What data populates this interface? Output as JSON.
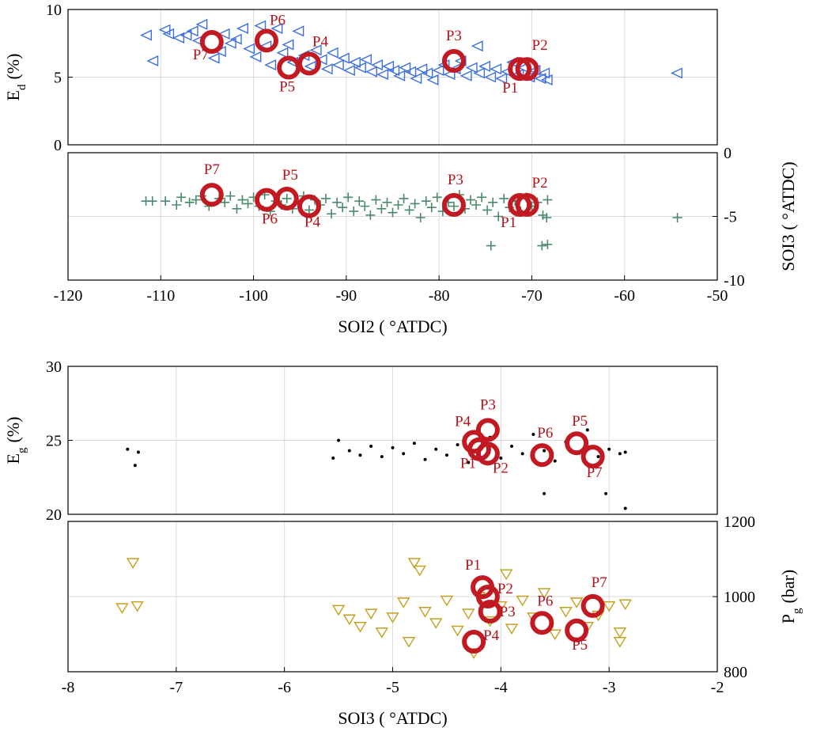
{
  "chart_data": [
    {
      "panel": "top-upper",
      "type": "scatter",
      "ylabel": "E",
      "ylabel_sub": "d",
      "ylabel_unit": "(%)",
      "xlim": [
        -120,
        -50
      ],
      "ylim": [
        0,
        10
      ],
      "yticks": [
        "0",
        "5",
        "10"
      ],
      "grid": true,
      "series": [
        {
          "marker": "triangle-left",
          "color": "#3d6fe0",
          "points": [
            [
              -111.5,
              8.1
            ],
            [
              -110.8,
              6.2
            ],
            [
              -109.5,
              8.5
            ],
            [
              -109.1,
              8.2
            ],
            [
              -108,
              7.9
            ],
            [
              -107.2,
              8.1
            ],
            [
              -106.5,
              8.4
            ],
            [
              -105.5,
              8.9
            ],
            [
              -105.9,
              7.7
            ],
            [
              -104.2,
              6.4
            ],
            [
              -103.5,
              6.9
            ],
            [
              -103.1,
              8.2
            ],
            [
              -102.4,
              7.5
            ],
            [
              -101.8,
              7.8
            ],
            [
              -101.1,
              8.6
            ],
            [
              -100.4,
              7.1
            ],
            [
              -99.7,
              6.5
            ],
            [
              -99.2,
              8.8
            ],
            [
              -98.6,
              7.3
            ],
            [
              -98.1,
              5.9
            ],
            [
              -97.4,
              8.6
            ],
            [
              -96.8,
              6.8
            ],
            [
              -96.2,
              7.4
            ],
            [
              -95.7,
              6.1
            ],
            [
              -95.1,
              8.4
            ],
            [
              -94.5,
              6.6
            ],
            [
              -93.8,
              5.8
            ],
            [
              -93.2,
              7.0
            ],
            [
              -92.6,
              6.3
            ],
            [
              -92.0,
              5.6
            ],
            [
              -91.4,
              6.8
            ],
            [
              -90.8,
              5.9
            ],
            [
              -90.2,
              6.4
            ],
            [
              -89.6,
              5.5
            ],
            [
              -89.0,
              6.1
            ],
            [
              -88.4,
              5.7
            ],
            [
              -87.8,
              6.3
            ],
            [
              -87.2,
              5.4
            ],
            [
              -86.6,
              5.9
            ],
            [
              -86.0,
              5.2
            ],
            [
              -85.4,
              5.8
            ],
            [
              -84.8,
              5.5
            ],
            [
              -84.2,
              5.1
            ],
            [
              -83.6,
              5.7
            ],
            [
              -83.0,
              5.4
            ],
            [
              -82.4,
              4.9
            ],
            [
              -81.8,
              5.6
            ],
            [
              -81.2,
              5.3
            ],
            [
              -80.6,
              4.8
            ],
            [
              -80.0,
              5.5
            ],
            [
              -79.4,
              5.9
            ],
            [
              -78.8,
              5.2
            ],
            [
              -78.2,
              5.6
            ],
            [
              -77.6,
              6.2
            ],
            [
              -77.0,
              5.1
            ],
            [
              -76.4,
              5.7
            ],
            [
              -75.8,
              7.3
            ],
            [
              -75.6,
              5.3
            ],
            [
              -75.0,
              5.8
            ],
            [
              -74.4,
              5.0
            ],
            [
              -73.8,
              5.6
            ],
            [
              -73.2,
              4.9
            ],
            [
              -72.6,
              5.4
            ],
            [
              -72.0,
              6.1
            ],
            [
              -71.4,
              5.2
            ],
            [
              -70.8,
              5.7
            ],
            [
              -70.2,
              5.0
            ],
            [
              -69.6,
              5.5
            ],
            [
              -69.0,
              4.9
            ],
            [
              -68.6,
              5.3
            ],
            [
              -68.3,
              4.8
            ],
            [
              -54.3,
              5.3
            ]
          ]
        }
      ],
      "highlights": [
        {
          "label": "P7",
          "x": -104.5,
          "y": 7.6
        },
        {
          "label": "P6",
          "x": -98.6,
          "y": 7.7
        },
        {
          "label": "P5",
          "x": -96.2,
          "y": 5.7
        },
        {
          "label": "P4",
          "x": -94.0,
          "y": 6.0
        },
        {
          "label": "P3",
          "x": -78.4,
          "y": 6.2
        },
        {
          "label": "P1",
          "x": -71.3,
          "y": 5.6
        },
        {
          "label": "P2",
          "x": -70.5,
          "y": 5.6
        }
      ]
    },
    {
      "panel": "top-lower",
      "type": "scatter",
      "ylabel": "SOI3 ( °ATDC)",
      "xlabel": "SOI2 ( °ATDC)",
      "xlim": [
        -120,
        -50
      ],
      "ylim": [
        -10,
        0
      ],
      "xticks": [
        "-120",
        "-110",
        "-100",
        "-90",
        "-80",
        "-70",
        "-60",
        "-50"
      ],
      "yticks": [
        "-10",
        "-5",
        "0"
      ],
      "grid": true,
      "series": [
        {
          "marker": "plus",
          "color": "#4a8a6a",
          "points": [
            [
              -111.6,
              -3.8
            ],
            [
              -110.9,
              -3.8
            ],
            [
              -109.5,
              -3.8
            ],
            [
              -108.3,
              -4.1
            ],
            [
              -107.8,
              -3.5
            ],
            [
              -106.9,
              -3.9
            ],
            [
              -106.2,
              -3.7
            ],
            [
              -105.6,
              -3.4
            ],
            [
              -104.8,
              -4.2
            ],
            [
              -103.7,
              -3.6
            ],
            [
              -103.1,
              -3.9
            ],
            [
              -102.5,
              -3.4
            ],
            [
              -101.8,
              -4.4
            ],
            [
              -101.2,
              -3.7
            ],
            [
              -100.6,
              -4.0
            ],
            [
              -100.0,
              -3.5
            ],
            [
              -99.4,
              -4.2
            ],
            [
              -98.8,
              -3.3
            ],
            [
              -98.2,
              -4.6
            ],
            [
              -97.6,
              -3.8
            ],
            [
              -97.0,
              -4.1
            ],
            [
              -96.4,
              -3.6
            ],
            [
              -95.8,
              -4.4
            ],
            [
              -95.2,
              -3.9
            ],
            [
              -94.6,
              -3.4
            ],
            [
              -94.0,
              -4.5
            ],
            [
              -93.4,
              -3.7
            ],
            [
              -92.8,
              -4.1
            ],
            [
              -92.2,
              -3.6
            ],
            [
              -91.6,
              -4.8
            ],
            [
              -91.0,
              -3.9
            ],
            [
              -90.4,
              -4.3
            ],
            [
              -89.8,
              -3.5
            ],
            [
              -89.2,
              -4.6
            ],
            [
              -88.6,
              -3.8
            ],
            [
              -88.0,
              -4.2
            ],
            [
              -87.4,
              -4.9
            ],
            [
              -86.8,
              -3.7
            ],
            [
              -86.2,
              -4.4
            ],
            [
              -85.6,
              -3.9
            ],
            [
              -85.0,
              -4.7
            ],
            [
              -84.4,
              -4.1
            ],
            [
              -83.8,
              -3.6
            ],
            [
              -83.2,
              -4.5
            ],
            [
              -82.6,
              -4.0
            ],
            [
              -82.0,
              -5.1
            ],
            [
              -81.4,
              -3.8
            ],
            [
              -80.8,
              -4.3
            ],
            [
              -80.2,
              -3.5
            ],
            [
              -79.6,
              -4.6
            ],
            [
              -79.0,
              -3.9
            ],
            [
              -78.4,
              -4.2
            ],
            [
              -77.8,
              -3.3
            ],
            [
              -77.2,
              -4.4
            ],
            [
              -76.6,
              -3.7
            ],
            [
              -76.0,
              -4.1
            ],
            [
              -75.4,
              -3.5
            ],
            [
              -74.8,
              -4.5
            ],
            [
              -74.2,
              -3.9
            ],
            [
              -73.6,
              -5.0
            ],
            [
              -73.0,
              -3.6
            ],
            [
              -72.4,
              -4.3
            ],
            [
              -71.8,
              -3.8
            ],
            [
              -71.2,
              -4.6
            ],
            [
              -70.6,
              -3.5
            ],
            [
              -70.0,
              -4.2
            ],
            [
              -69.4,
              -3.9
            ],
            [
              -68.8,
              -4.9
            ],
            [
              -68.3,
              -3.7
            ],
            [
              -68.4,
              -5.1
            ],
            [
              -74.4,
              -7.3
            ],
            [
              -68.9,
              -7.3
            ],
            [
              -68.3,
              -7.2
            ],
            [
              -54.3,
              -5.1
            ]
          ]
        }
      ],
      "highlights": [
        {
          "label": "P7",
          "x": -104.5,
          "y": -3.3
        },
        {
          "label": "P6",
          "x": -98.6,
          "y": -3.7
        },
        {
          "label": "P5",
          "x": -96.4,
          "y": -3.6
        },
        {
          "label": "P4",
          "x": -94.0,
          "y": -4.2
        },
        {
          "label": "P3",
          "x": -78.4,
          "y": -4.1
        },
        {
          "label": "P1",
          "x": -71.3,
          "y": -4.1
        },
        {
          "label": "P2",
          "x": -70.5,
          "y": -4.1
        }
      ]
    },
    {
      "panel": "bottom-upper",
      "type": "scatter",
      "ylabel": "E",
      "ylabel_sub": "g",
      "ylabel_unit": "(%)",
      "xlim": [
        -8,
        -2
      ],
      "ylim": [
        20,
        30
      ],
      "yticks": [
        "20",
        "25",
        "30"
      ],
      "grid": true,
      "series": [
        {
          "marker": "dot",
          "color": "#000000",
          "points": [
            [
              -7.45,
              24.4
            ],
            [
              -7.35,
              24.2
            ],
            [
              -7.38,
              23.3
            ],
            [
              -5.55,
              23.8
            ],
            [
              -5.5,
              25.0
            ],
            [
              -5.4,
              24.3
            ],
            [
              -5.3,
              24.0
            ],
            [
              -5.2,
              24.6
            ],
            [
              -5.1,
              23.9
            ],
            [
              -5.0,
              24.5
            ],
            [
              -4.9,
              24.1
            ],
            [
              -4.8,
              24.8
            ],
            [
              -4.7,
              23.7
            ],
            [
              -4.6,
              24.4
            ],
            [
              -4.5,
              24.0
            ],
            [
              -4.4,
              24.7
            ],
            [
              -4.3,
              23.5
            ],
            [
              -4.2,
              24.3
            ],
            [
              -4.1,
              25.2
            ],
            [
              -4.0,
              23.8
            ],
            [
              -3.9,
              24.6
            ],
            [
              -3.8,
              24.1
            ],
            [
              -3.7,
              25.4
            ],
            [
              -3.6,
              24.3
            ],
            [
              -3.5,
              23.6
            ],
            [
              -3.4,
              24.9
            ],
            [
              -3.3,
              24.2
            ],
            [
              -3.2,
              25.7
            ],
            [
              -3.1,
              23.9
            ],
            [
              -3.0,
              24.4
            ],
            [
              -2.9,
              24.1
            ],
            [
              -2.85,
              24.2
            ],
            [
              -3.6,
              21.4
            ],
            [
              -3.03,
              21.4
            ],
            [
              -2.85,
              20.4
            ]
          ]
        }
      ],
      "highlights": [
        {
          "label": "P4",
          "x": -4.25,
          "y": 24.9
        },
        {
          "label": "P3",
          "x": -4.12,
          "y": 25.7
        },
        {
          "label": "P1",
          "x": -4.2,
          "y": 24.4
        },
        {
          "label": "P2",
          "x": -4.12,
          "y": 24.1
        },
        {
          "label": "P6",
          "x": -3.62,
          "y": 24.0
        },
        {
          "label": "P5",
          "x": -3.3,
          "y": 24.8
        },
        {
          "label": "P7",
          "x": -3.15,
          "y": 23.9
        }
      ]
    },
    {
      "panel": "bottom-lower",
      "type": "scatter",
      "ylabel": "P",
      "ylabel_sub": "g",
      "ylabel_unit": "(bar)",
      "xlabel": "SOI3 ( °ATDC)",
      "xlim": [
        -8,
        -2
      ],
      "ylim": [
        800,
        1200
      ],
      "xticks": [
        "-8",
        "-7",
        "-6",
        "-5",
        "-4",
        "-3",
        "-2"
      ],
      "yticks": [
        "800",
        "1000",
        "1200"
      ],
      "grid": true,
      "series": [
        {
          "marker": "triangle-down",
          "color": "#c4a11e",
          "points": [
            [
              -7.4,
              1090
            ],
            [
              -7.5,
              970
            ],
            [
              -7.36,
              975
            ],
            [
              -5.5,
              965
            ],
            [
              -5.4,
              940
            ],
            [
              -5.3,
              920
            ],
            [
              -5.2,
              955
            ],
            [
              -5.1,
              905
            ],
            [
              -5.0,
              945
            ],
            [
              -4.9,
              985
            ],
            [
              -4.85,
              880
            ],
            [
              -4.8,
              1090
            ],
            [
              -4.75,
              1070
            ],
            [
              -4.7,
              960
            ],
            [
              -4.6,
              930
            ],
            [
              -4.5,
              990
            ],
            [
              -4.4,
              910
            ],
            [
              -4.3,
              955
            ],
            [
              -4.2,
              1000
            ],
            [
              -4.1,
              935
            ],
            [
              -4.0,
              975
            ],
            [
              -3.95,
              1060
            ],
            [
              -3.9,
              915
            ],
            [
              -3.8,
              990
            ],
            [
              -3.7,
              945
            ],
            [
              -3.6,
              1010
            ],
            [
              -3.5,
              900
            ],
            [
              -3.4,
              960
            ],
            [
              -3.3,
              985
            ],
            [
              -3.2,
              920
            ],
            [
              -3.1,
              950
            ],
            [
              -3.0,
              975
            ],
            [
              -2.9,
              905
            ],
            [
              -2.85,
              980
            ],
            [
              -2.9,
              880
            ],
            [
              -4.25,
              850
            ]
          ]
        }
      ],
      "highlights": [
        {
          "label": "P1",
          "x": -4.17,
          "y": 1025
        },
        {
          "label": "P2",
          "x": -4.12,
          "y": 1000
        },
        {
          "label": "P3",
          "x": -4.1,
          "y": 960
        },
        {
          "label": "P4",
          "x": -4.25,
          "y": 880
        },
        {
          "label": "P6",
          "x": -3.62,
          "y": 930
        },
        {
          "label": "P5",
          "x": -3.3,
          "y": 910
        },
        {
          "label": "P7",
          "x": -3.15,
          "y": 975
        }
      ]
    }
  ]
}
